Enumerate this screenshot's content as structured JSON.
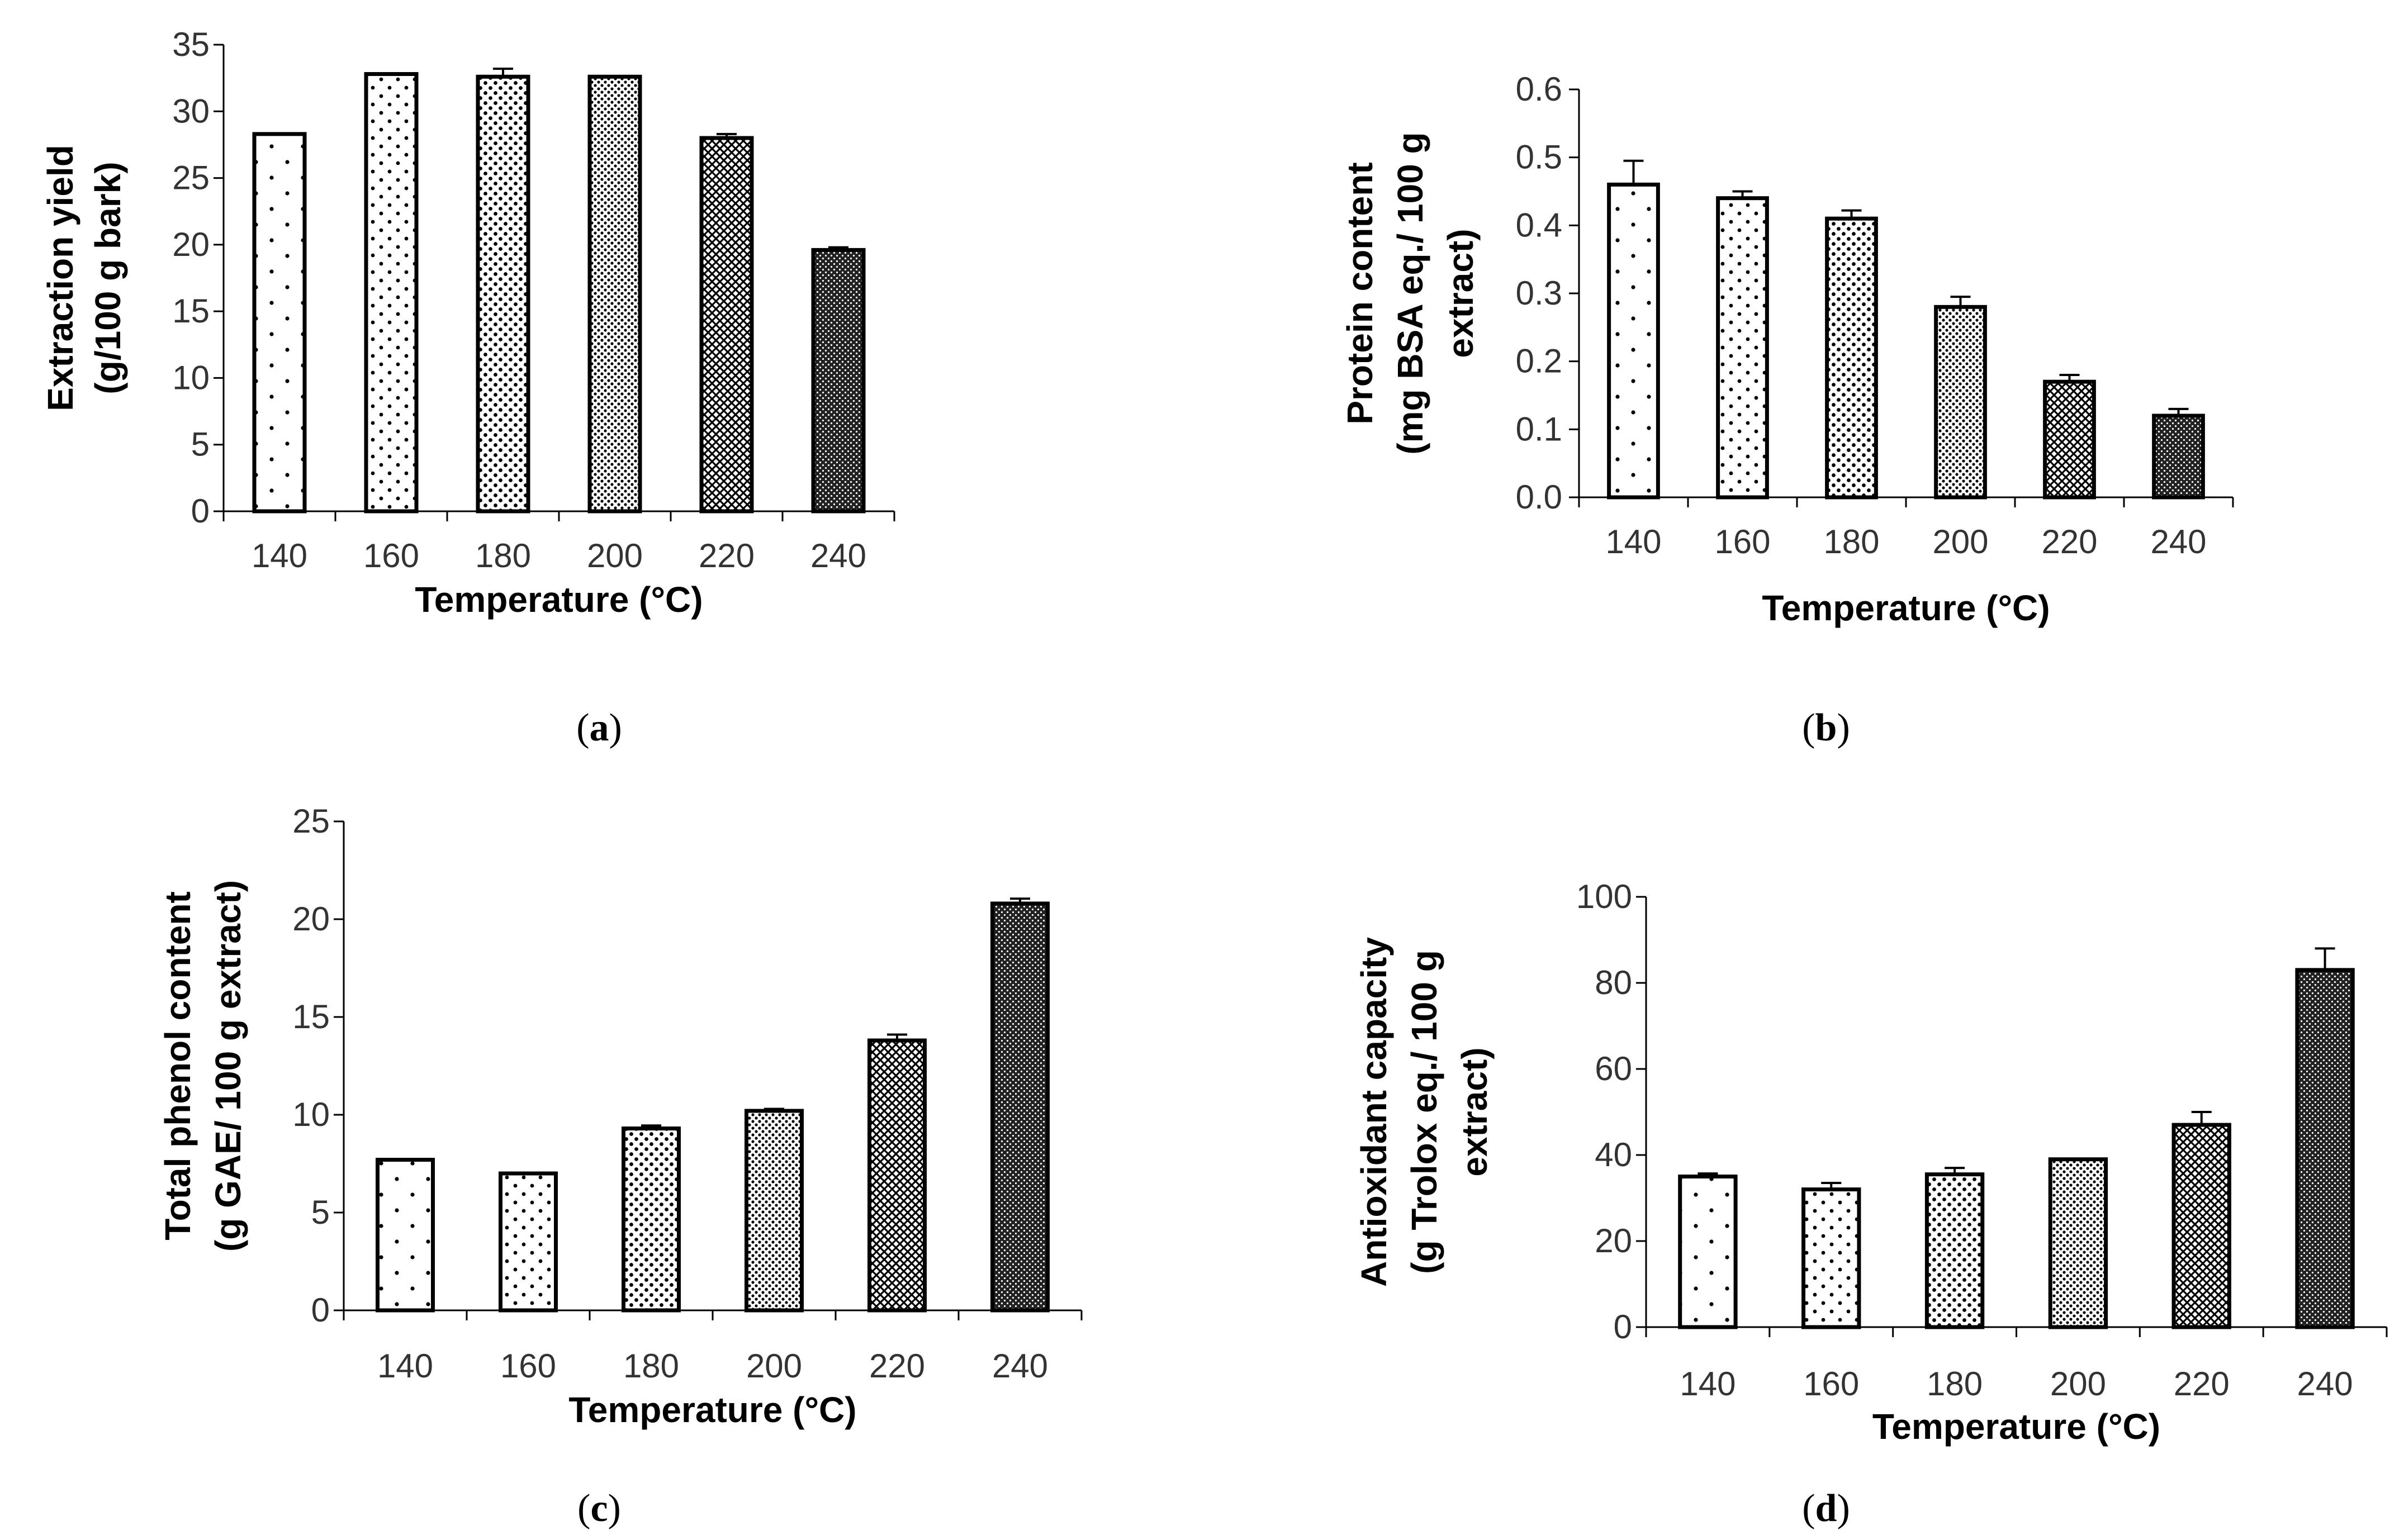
{
  "chart_data": [
    {
      "panel": "a",
      "type": "bar",
      "categories": [
        "140",
        "160",
        "180",
        "200",
        "220",
        "240"
      ],
      "values": [
        28.3,
        32.8,
        32.6,
        32.6,
        28.0,
        19.6
      ],
      "errors": [
        0,
        0,
        0.6,
        0,
        0.3,
        0.2
      ],
      "title": "",
      "xlabel": "Temperature (°C)",
      "ylabel": [
        "Extraction yield",
        "(g/100 g bark)"
      ],
      "ylim": [
        0,
        35
      ],
      "yticks": [
        "0",
        "5",
        "10",
        "15",
        "20",
        "25",
        "30",
        "35"
      ],
      "caption": {
        "open": "(",
        "letter": "a",
        "close": ")"
      }
    },
    {
      "panel": "b",
      "type": "bar",
      "categories": [
        "140",
        "160",
        "180",
        "200",
        "220",
        "240"
      ],
      "values": [
        0.46,
        0.44,
        0.41,
        0.28,
        0.17,
        0.12
      ],
      "errors": [
        0.035,
        0.01,
        0.012,
        0.015,
        0.01,
        0.01
      ],
      "title": "",
      "xlabel": "Temperature (°C)",
      "ylabel": [
        "Protein content",
        "(mg BSA eq./ 100 g",
        "extract)"
      ],
      "ylim": [
        0,
        0.6
      ],
      "yticks": [
        "0.0",
        "0.1",
        "0.2",
        "0.3",
        "0.4",
        "0.5",
        "0.6"
      ],
      "caption": {
        "open": "(",
        "letter": "b",
        "close": ")"
      }
    },
    {
      "panel": "c",
      "type": "bar",
      "categories": [
        "140",
        "160",
        "180",
        "200",
        "220",
        "240"
      ],
      "values": [
        7.7,
        7.0,
        9.3,
        10.2,
        13.8,
        20.8
      ],
      "errors": [
        0,
        0,
        0.15,
        0.1,
        0.3,
        0.25
      ],
      "title": "",
      "xlabel": "Temperature (°C)",
      "ylabel": [
        "Total phenol content",
        "(g GAE/ 100 g extract)"
      ],
      "ylim": [
        0,
        25
      ],
      "yticks": [
        "0",
        "5",
        "10",
        "15",
        "20",
        "25"
      ],
      "caption": {
        "open": "(",
        "letter": "c",
        "close": ")"
      }
    },
    {
      "panel": "d",
      "type": "bar",
      "categories": [
        "140",
        "160",
        "180",
        "200",
        "220",
        "240"
      ],
      "values": [
        35,
        32,
        35.5,
        39,
        47,
        83
      ],
      "errors": [
        0.7,
        1.5,
        1.5,
        0,
        3.0,
        5.0
      ],
      "title": "",
      "xlabel": "Temperature (°C)",
      "ylabel": [
        "Antioxidant capacity",
        "(g Trolox eq./ 100 g",
        "extract)"
      ],
      "ylim": [
        0,
        100
      ],
      "yticks": [
        "0",
        "20",
        "40",
        "60",
        "80",
        "100"
      ],
      "caption": {
        "open": "(",
        "letter": "d",
        "close": ")"
      }
    }
  ]
}
